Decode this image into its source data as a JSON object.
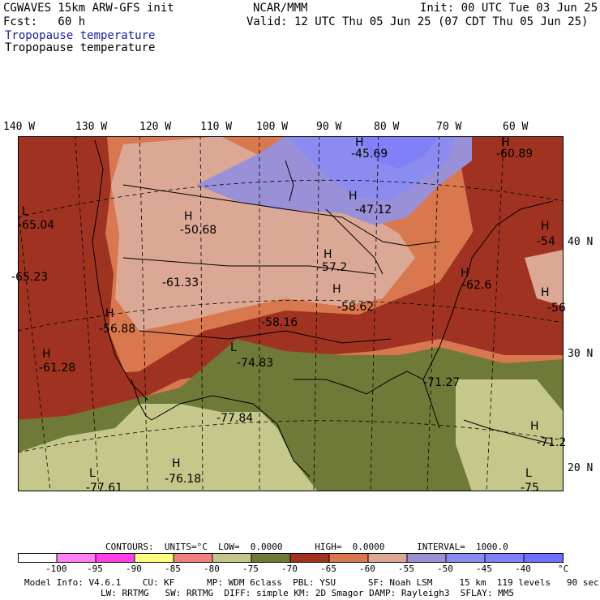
{
  "header": {
    "model": "CGWAVES 15km ARW-GFS init",
    "org": "NCAR/MMM",
    "init": "Init: 00 UTC Tue 03 Jun 25",
    "fcst": "Fcst:   60 h",
    "valid": "Valid: 12 UTC Thu 05 Jun 25 (07 CDT Thu 05 Jun 25)",
    "field_title_1": "Tropopause temperature",
    "field_title_2": "Tropopause temperature"
  },
  "colors": {
    "title_blue": "#1c1c9c",
    "l_below_m100": "#ffffff",
    "l_m100_m95": "#ff7ff5",
    "l_m95_m90": "#ff40e6",
    "l_m90_m85": "#ffff80",
    "l_m85_m80": "#f08080",
    "l_m80_m75": "#c5c88a",
    "l_m75_m70": "#707a38",
    "l_m70_m65": "#a03222",
    "l_m65_m60": "#d9784e",
    "l_m60_m55": "#dca896",
    "l_m55_m50": "#9a90d8",
    "l_m50_m45": "#8c8cf0",
    "l_m45_m40": "#8080f8",
    "l_above_m40": "#7070ff"
  },
  "map": {
    "lon_labels": [
      "140 W",
      "130 W",
      "120 W",
      "110 W",
      "100 W",
      "90 W",
      "80 W",
      "70 W",
      "60 W"
    ],
    "lat_labels": [
      "40 N",
      "30 N",
      "20 N"
    ],
    "highs_lows": [
      {
        "sym": "H",
        "val": "-45.69"
      },
      {
        "sym": "H",
        "val": "-60.89"
      },
      {
        "sym": "H",
        "val": "-47.12"
      },
      {
        "sym": "H",
        "val": "-50.68"
      },
      {
        "sym": "L",
        "val": "-65.04"
      },
      {
        "sym": "H",
        "val": "-54"
      },
      {
        "sym": "H",
        "val": "-57.2"
      },
      {
        "sym": "H",
        "val": "-62.6"
      },
      {
        "sym": "",
        "val": "-65.23"
      },
      {
        "sym": "",
        "val": "-61.33"
      },
      {
        "sym": "H",
        "val": "-56"
      },
      {
        "sym": "H",
        "val": "-58.62"
      },
      {
        "sym": "H",
        "val": "-56.88"
      },
      {
        "sym": "",
        "val": "-58.16"
      },
      {
        "sym": "H",
        "val": "-61.28"
      },
      {
        "sym": "L",
        "val": "-74.83"
      },
      {
        "sym": "",
        "val": "-71.27"
      },
      {
        "sym": "",
        "val": "-77.84"
      },
      {
        "sym": "H",
        "val": "-71.2"
      },
      {
        "sym": "H",
        "val": "-76.18"
      },
      {
        "sym": "L",
        "val": "-77.61"
      },
      {
        "sym": "L",
        "val": "-75"
      }
    ]
  },
  "contours": {
    "line": "CONTOURS:  UNITS=°C  LOW=  0.0000      HIGH=  0.0000      INTERVAL=  1000.0"
  },
  "colorbar": {
    "labels": [
      "-100",
      "-95",
      "-90",
      "-85",
      "-80",
      "-75",
      "-70",
      "-65",
      "-60",
      "-55",
      "-50",
      "-45",
      "-40",
      "°C"
    ]
  },
  "footer": {
    "line1": "Model Info: V4.6.1    CU: KF      MP: WDM 6class  PBL: YSU      SF: Noah LSM     15 km  119 levels   90 sec",
    "line2": "LW: RRTMG   SW: RRTMG  DIFF: simple KM: 2D Smagor DAMP: Rayleigh3  SFLAY: MM5"
  }
}
